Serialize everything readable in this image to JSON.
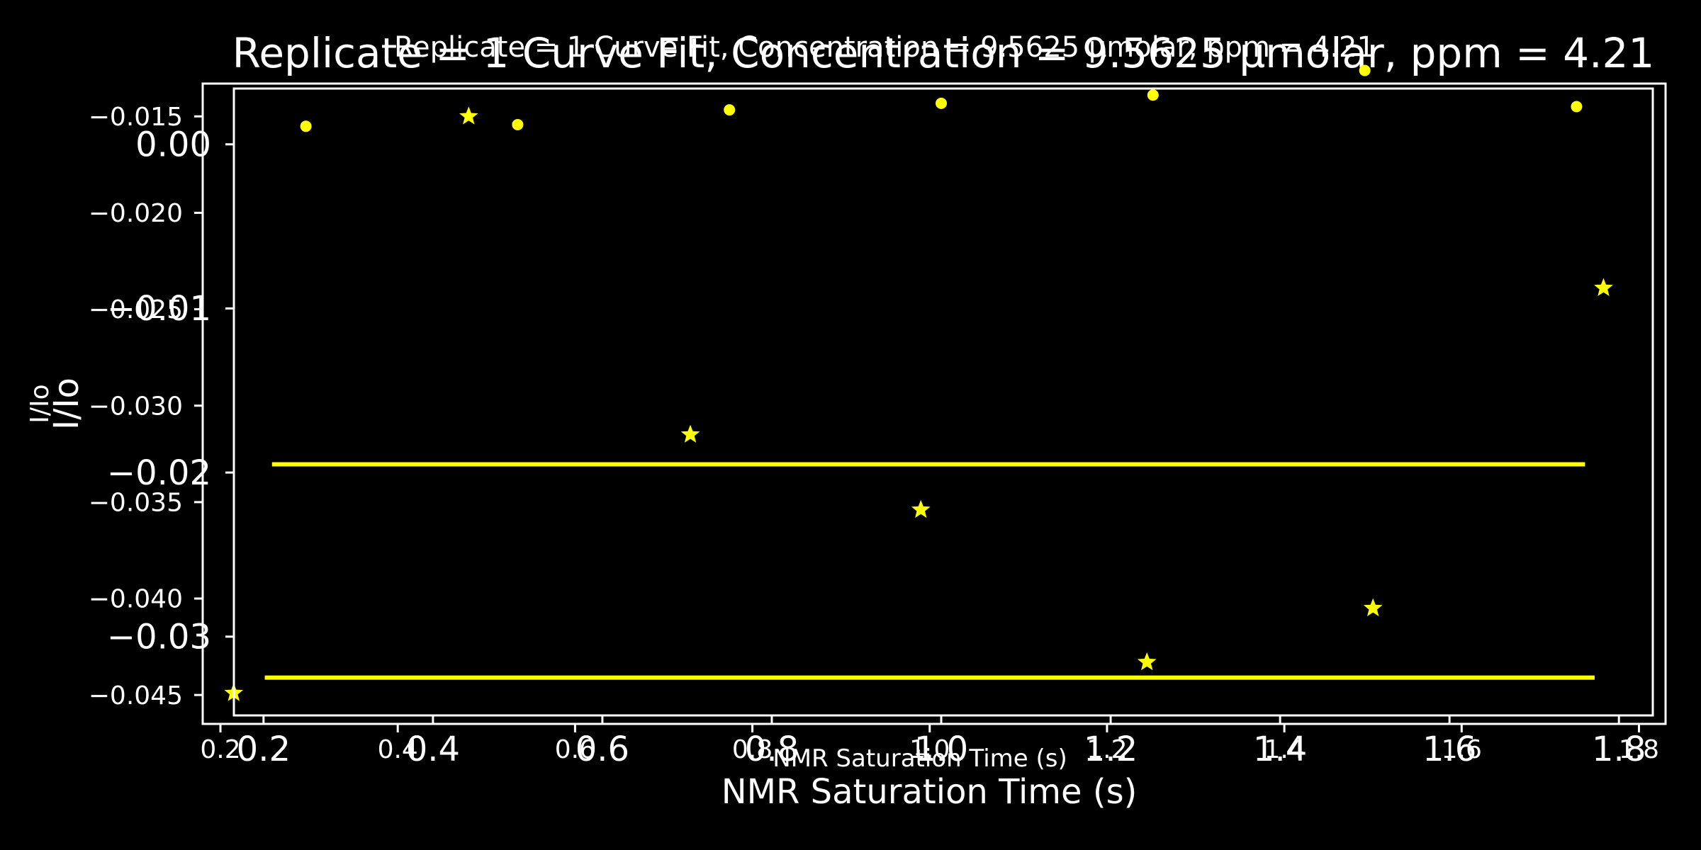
{
  "chart_data": [
    {
      "type": "scatter",
      "title": "Replicate = 1 Curve Fit, Concentration = 9.5625 µmolar, ppm = 4.21",
      "xlabel": "NMR Saturation Time (s)",
      "ylabel": "I/Io",
      "xticks": [
        "0.2",
        "0.4",
        "0.6",
        "0.8",
        "1.0",
        "1.2",
        "1.4",
        "1.6",
        "1.8"
      ],
      "yticks": [
        "−0.015",
        "−0.020",
        "−0.025",
        "−0.030",
        "−0.035",
        "−0.040",
        "−0.045"
      ],
      "xlim": [
        0.18,
        1.83
      ],
      "ylim": [
        -0.0465,
        -0.0133
      ],
      "color": "#ffff00",
      "marker": "star",
      "series": [
        {
          "x": [
            0.215,
            0.48,
            0.73,
            0.99,
            1.245,
            1.5,
            1.76
          ],
          "y": [
            -0.0449,
            -0.015,
            -0.0315,
            -0.0354,
            -0.0433,
            -0.0405,
            -0.0239
          ]
        }
      ],
      "fit": {
        "x": [
          0.25,
          1.75
        ],
        "y": [
          -0.0441,
          -0.0441
        ]
      }
    },
    {
      "type": "scatter",
      "title": "Replicate = 1 Curve Fit, Concentration = 9.5625 µmolar, ppm = 4.21",
      "xlabel": "NMR Saturation Time (s)",
      "ylabel": "I/Io",
      "xticks": [
        "0.2",
        "0.4",
        "0.6",
        "0.8",
        "1.0",
        "1.2",
        "1.4",
        "1.6",
        "1.8"
      ],
      "yticks": [
        "0.00",
        "−0.01",
        "−0.02",
        "−0.03"
      ],
      "xlim": [
        0.165,
        1.84
      ],
      "ylim": [
        -0.0348,
        0.0034
      ],
      "color": "#ffff00",
      "marker": "dot",
      "series": [
        {
          "x": [
            0.25,
            0.5,
            0.75,
            1.0,
            1.25,
            1.5,
            1.75
          ],
          "y": [
            0.0011,
            0.0012,
            0.0021,
            0.0025,
            0.003,
            0.0045,
            0.0023
          ]
        }
      ],
      "fit": {
        "x": [
          0.21,
          1.76
        ],
        "y": [
          -0.0195,
          -0.0195
        ]
      }
    }
  ]
}
